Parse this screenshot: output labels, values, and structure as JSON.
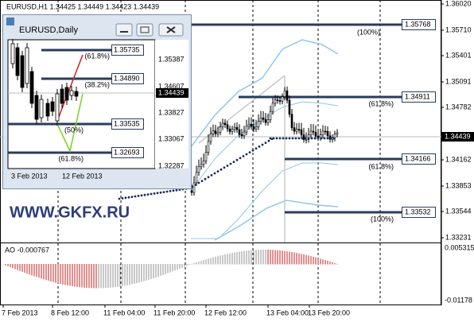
{
  "main": {
    "title": "EURUSD,H1 1.34425 1.34449 1.34423 1.34439",
    "price_axis": [
      "1.36020",
      "1.35710",
      "1.35401",
      "1.35091",
      "1.34782",
      "1.34162",
      "1.33853",
      "1.33544",
      "1.33231"
    ],
    "current_price": "1.34439",
    "levels": [
      {
        "price": "1.35768",
        "percent": "(100%)"
      },
      {
        "price": "1.34911",
        "percent": "(61.8%)"
      },
      {
        "price": "1.34166",
        "percent": "(61.8%)"
      },
      {
        "price": "1.33532",
        "percent": "(100%)"
      }
    ],
    "watermark": "WWW.GKFX.RU",
    "time_axis": [
      "7 Feb 2013",
      "8 Feb 12:00",
      "11 Feb 04:00",
      "11 Feb 20:00",
      "12 Feb 12:00",
      "13 Feb 04:00",
      "13 Feb 20:00"
    ],
    "indicator": {
      "label": "AO -0.000767",
      "axis": [
        "0.005315",
        "-0.01178"
      ]
    }
  },
  "inset": {
    "title": "EURUSD,Daily",
    "price_axis": [
      "1.35387",
      "1.34607",
      "1.33827",
      "1.33067",
      "1.32287"
    ],
    "current_price": "1.34439",
    "levels": [
      {
        "price": "1.35735",
        "percent": "(61.8%)"
      },
      {
        "price": "1.34890",
        "percent": "(38.2%)"
      },
      {
        "price": "1.33535",
        "percent": "(50%)"
      },
      {
        "price": "1.32693",
        "percent": "(61.8%)"
      }
    ],
    "time_axis": [
      "3 Feb 2013",
      "12 Feb 2013"
    ]
  }
}
